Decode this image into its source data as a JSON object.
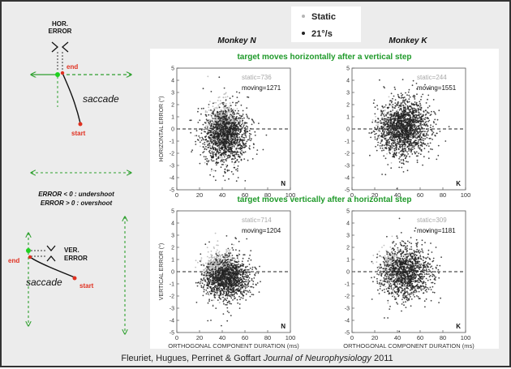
{
  "legend": {
    "static_label": "Static",
    "moving_label": "21°/s",
    "static_color": "#b5b5b5",
    "moving_color": "#222222"
  },
  "monkey_n_label": "Monkey N",
  "monkey_k_label": "Monkey K",
  "left_panel": {
    "hor_error_line1": "HOR.",
    "hor_error_line2": "ERROR",
    "end_label_top": "end",
    "saccade_label_top": "saccade",
    "start_label_top": "start",
    "error_rule_1": "ERROR < 0 : undershoot",
    "error_rule_2": "ERROR > 0 : overshoot",
    "ver_error_line1": "VER.",
    "ver_error_line2": "ERROR",
    "end_label_bottom": "end",
    "saccade_label_bottom": "saccade",
    "start_label_bottom": "start",
    "end_color": "#e03020",
    "arrow_color": "#2ea02e"
  },
  "row_titles": {
    "top": "target moves horizontally after a vertical step",
    "bottom": "target moves vertically after a horizontal step",
    "color": "#1f9a2a"
  },
  "citation": {
    "authors": "Fleuriet, Hugues, Perrinet & Goffart",
    "journal": "Journal of Neurophysiology",
    "year": "2011"
  },
  "chart_data": [
    {
      "type": "scatter",
      "monkey": "N",
      "row": "horizontal",
      "ylabel": "HORIZONTAL ERROR (°)",
      "xlabel": "",
      "xlim": [
        0,
        100
      ],
      "ylim": [
        -5,
        5
      ],
      "xticks": [
        0,
        20,
        40,
        60,
        80,
        100
      ],
      "yticks": [
        -5,
        -4,
        -3,
        -2,
        -1,
        0,
        1,
        2,
        3,
        4,
        5
      ],
      "static_count_label": "static=736",
      "moving_count_label": "moving=1271",
      "corner_label": "N",
      "series": [
        {
          "name": "Static",
          "n": 736,
          "x_mean": 40,
          "x_sd": 6,
          "y_mean": 0.2,
          "y_sd": 0.9
        },
        {
          "name": "21°/s",
          "n": 1271,
          "x_mean": 43,
          "x_sd": 10,
          "y_mean": -0.6,
          "y_sd": 1.1
        }
      ]
    },
    {
      "type": "scatter",
      "monkey": "K",
      "row": "horizontal",
      "ylabel": "",
      "xlabel": "",
      "xlim": [
        0,
        100
      ],
      "ylim": [
        -5,
        5
      ],
      "xticks": [
        0,
        20,
        40,
        60,
        80,
        100
      ],
      "yticks": [
        -5,
        -4,
        -3,
        -2,
        -1,
        0,
        1,
        2,
        3,
        4,
        5
      ],
      "static_count_label": "static=244",
      "moving_count_label": "moving=1551",
      "corner_label": "K",
      "series": [
        {
          "name": "Static",
          "n": 244,
          "x_mean": 35,
          "x_sd": 6,
          "y_mean": 0.0,
          "y_sd": 0.8
        },
        {
          "name": "21°/s",
          "n": 1551,
          "x_mean": 46,
          "x_sd": 11,
          "y_mean": 0.1,
          "y_sd": 1.1
        }
      ]
    },
    {
      "type": "scatter",
      "monkey": "N",
      "row": "vertical",
      "ylabel": "VERTICAL ERROR (°)",
      "xlabel": "ORTHOGONAL COMPONENT DURATION (ms)",
      "xlim": [
        0,
        100
      ],
      "ylim": [
        -5,
        5
      ],
      "xticks": [
        0,
        20,
        40,
        60,
        80,
        100
      ],
      "yticks": [
        -5,
        -4,
        -3,
        -2,
        -1,
        0,
        1,
        2,
        3,
        4,
        5
      ],
      "static_count_label": "static=714",
      "moving_count_label": "moving=1204",
      "corner_label": "N",
      "series": [
        {
          "name": "Static",
          "n": 714,
          "x_mean": 38,
          "x_sd": 7,
          "y_mean": 0.2,
          "y_sd": 0.6
        },
        {
          "name": "21°/s",
          "n": 1204,
          "x_mean": 45,
          "x_sd": 10,
          "y_mean": -0.6,
          "y_sd": 0.8
        }
      ]
    },
    {
      "type": "scatter",
      "monkey": "K",
      "row": "vertical",
      "ylabel": "",
      "xlabel": "ORTHOGONAL COMPONENT DURATION (ms)",
      "xlim": [
        0,
        100
      ],
      "ylim": [
        -5,
        5
      ],
      "xticks": [
        0,
        20,
        40,
        60,
        80,
        100
      ],
      "yticks": [
        -5,
        -4,
        -3,
        -2,
        -1,
        0,
        1,
        2,
        3,
        4,
        5
      ],
      "static_count_label": "static=309",
      "moving_count_label": "moving=1181",
      "corner_label": "K",
      "series": [
        {
          "name": "Static",
          "n": 309,
          "x_mean": 37,
          "x_sd": 6,
          "y_mean": 0.5,
          "y_sd": 0.7
        },
        {
          "name": "21°/s",
          "n": 1181,
          "x_mean": 48,
          "x_sd": 11,
          "y_mean": -0.1,
          "y_sd": 1.0
        }
      ]
    }
  ]
}
